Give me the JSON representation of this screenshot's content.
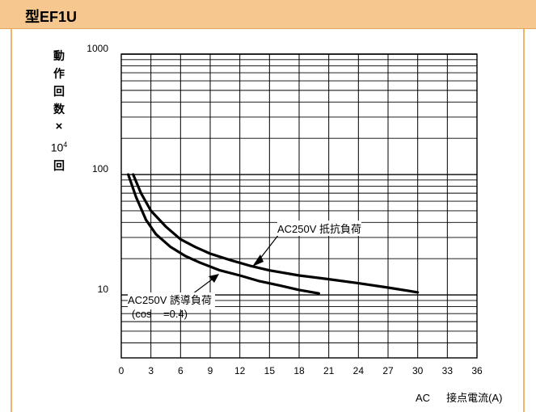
{
  "header": {
    "title": "型EF1U"
  },
  "yaxis": {
    "label_chars": [
      "動",
      "作",
      "回",
      "数",
      "×",
      "10",
      "回"
    ],
    "exp": "4"
  },
  "xaxis": {
    "prefix": "AC",
    "label": "接点電流(A)"
  },
  "annotations": {
    "resistive": "AC250V 抵抗負荷",
    "inductive": "AC250V 誘導負荷",
    "inductive_note": "(cos    =0.4)"
  },
  "chart_data": {
    "type": "line",
    "xlim": [
      0,
      36
    ],
    "ylim": [
      3,
      1000
    ],
    "yscale": "log",
    "grid": true,
    "x_ticks": [
      "0",
      "3",
      "6",
      "9",
      "12",
      "15",
      "18",
      "21",
      "24",
      "27",
      "30",
      "33",
      "36"
    ],
    "y_tick_labels": [
      {
        "value": 1000,
        "text": "1000"
      },
      {
        "value": 100,
        "text": "100"
      },
      {
        "value": 10,
        "text": "10"
      }
    ],
    "series": [
      {
        "name": "AC250V 抵抗負荷",
        "points": [
          [
            1.2,
            100
          ],
          [
            2,
            70
          ],
          [
            3,
            50
          ],
          [
            4.5,
            37
          ],
          [
            6,
            29
          ],
          [
            7.5,
            25
          ],
          [
            9,
            22
          ],
          [
            11,
            19.5
          ],
          [
            13,
            17.5
          ],
          [
            15,
            16
          ],
          [
            18,
            14.5
          ],
          [
            21,
            13.5
          ],
          [
            24,
            12.5
          ],
          [
            27,
            11.5
          ],
          [
            30,
            10.5
          ]
        ]
      },
      {
        "name": "AC250V 誘導負荷",
        "points": [
          [
            0.7,
            100
          ],
          [
            1.5,
            65
          ],
          [
            2.5,
            42
          ],
          [
            3.5,
            32
          ],
          [
            5,
            25
          ],
          [
            6.5,
            21
          ],
          [
            8,
            18.5
          ],
          [
            10,
            16
          ],
          [
            12,
            14.5
          ],
          [
            14,
            13
          ],
          [
            16,
            12
          ],
          [
            18,
            11
          ],
          [
            20,
            10.3
          ]
        ]
      }
    ]
  }
}
